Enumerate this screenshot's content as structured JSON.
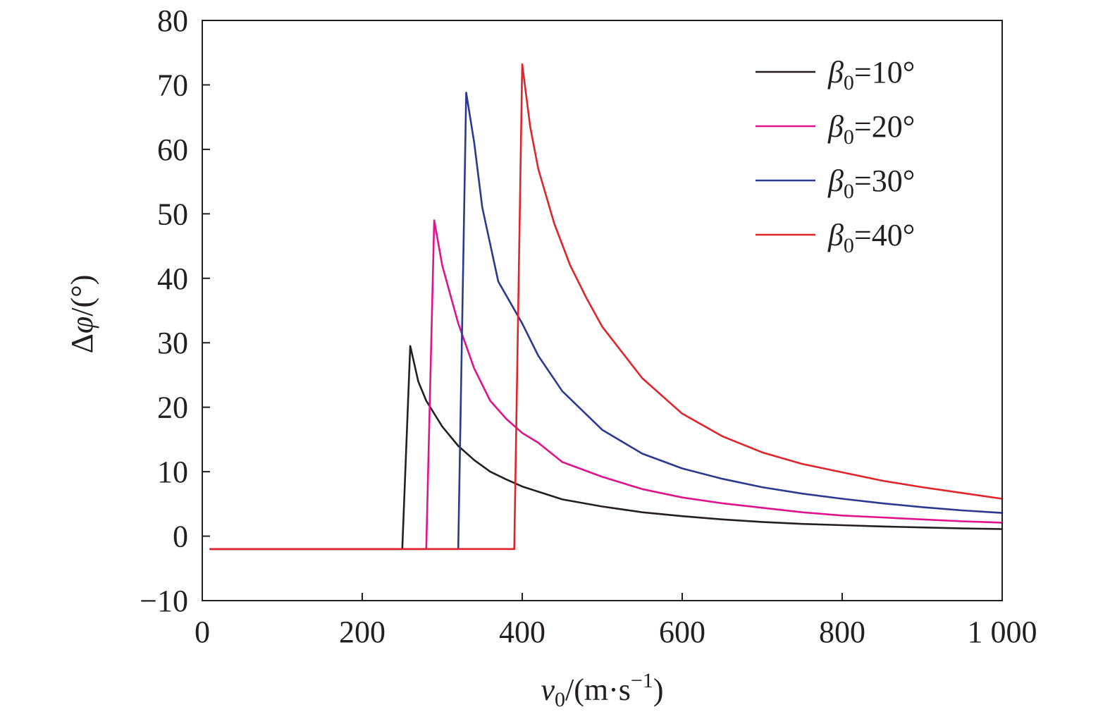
{
  "chart_data": {
    "type": "line",
    "xlabel": {
      "var": "v",
      "sub": "0",
      "unit_open": "/(m·s",
      "unit_sup": "−1",
      "unit_close": ")"
    },
    "ylabel": {
      "pre": "Δ",
      "var": "φ",
      "unit": "/(°)"
    },
    "xlim": [
      0,
      1000
    ],
    "ylim": [
      -10,
      80
    ],
    "x_ticks": [
      {
        "value": 0,
        "label": "0"
      },
      {
        "value": 200,
        "label": "200"
      },
      {
        "value": 400,
        "label": "400"
      },
      {
        "value": 600,
        "label": "600"
      },
      {
        "value": 800,
        "label": "800"
      },
      {
        "value": 1000,
        "label": "1 000"
      }
    ],
    "y_ticks": [
      {
        "value": -10,
        "label": "−10"
      },
      {
        "value": 0,
        "label": "0"
      },
      {
        "value": 10,
        "label": "10"
      },
      {
        "value": 20,
        "label": "20"
      },
      {
        "value": 30,
        "label": "30"
      },
      {
        "value": 40,
        "label": "40"
      },
      {
        "value": 50,
        "label": "50"
      },
      {
        "value": 60,
        "label": "60"
      },
      {
        "value": 70,
        "label": "70"
      },
      {
        "value": 80,
        "label": "80"
      }
    ],
    "grid": false,
    "legend_position": "top-right",
    "series": [
      {
        "name": "β0=10°",
        "legend": {
          "var": "β",
          "sub": "0",
          "rest": "=10°"
        },
        "color": "#231f20",
        "x": [
          10,
          250,
          260,
          270,
          280,
          300,
          320,
          340,
          360,
          380,
          400,
          450,
          500,
          550,
          600,
          650,
          700,
          750,
          800,
          850,
          900,
          950,
          1000
        ],
        "y": [
          -2,
          -2,
          29.5,
          24,
          21,
          17,
          14,
          11.8,
          10,
          8.8,
          7.7,
          5.7,
          4.6,
          3.7,
          3.1,
          2.6,
          2.2,
          1.9,
          1.7,
          1.5,
          1.35,
          1.2,
          1.1
        ]
      },
      {
        "name": "β0=20°",
        "legend": {
          "var": "β",
          "sub": "0",
          "rest": "=20°"
        },
        "color": "#e0138c",
        "x": [
          10,
          280,
          290,
          300,
          320,
          340,
          360,
          380,
          400,
          420,
          450,
          500,
          550,
          600,
          650,
          700,
          750,
          800,
          850,
          900,
          950,
          1000
        ],
        "y": [
          -2,
          -2,
          49,
          42,
          33,
          26,
          21,
          18.2,
          16,
          14.5,
          11.5,
          9.2,
          7.3,
          6,
          5.1,
          4.4,
          3.7,
          3.2,
          2.9,
          2.6,
          2.3,
          2.1
        ]
      },
      {
        "name": "β0=30°",
        "legend": {
          "var": "β",
          "sub": "0",
          "rest": "=30°"
        },
        "color": "#2b3990",
        "x": [
          10,
          320,
          330,
          340,
          350,
          370,
          400,
          420,
          450,
          500,
          550,
          600,
          650,
          700,
          750,
          800,
          850,
          900,
          950,
          1000
        ],
        "y": [
          -2,
          -2,
          68.8,
          61,
          51,
          39.5,
          33,
          28,
          22.5,
          16.5,
          12.8,
          10.5,
          8.9,
          7.6,
          6.6,
          5.8,
          5.1,
          4.5,
          4,
          3.6
        ]
      },
      {
        "name": "β0=40°",
        "legend": {
          "var": "β",
          "sub": "0",
          "rest": "=40°"
        },
        "color": "#e0242a",
        "x": [
          10,
          390,
          400,
          410,
          420,
          440,
          460,
          480,
          500,
          550,
          600,
          650,
          700,
          750,
          800,
          850,
          900,
          950,
          1000
        ],
        "y": [
          -2,
          -2,
          73.2,
          63.5,
          57,
          48.5,
          42,
          37,
          32.5,
          24.5,
          19,
          15.5,
          13,
          11.2,
          9.9,
          8.6,
          7.6,
          6.7,
          5.8
        ]
      }
    ]
  }
}
